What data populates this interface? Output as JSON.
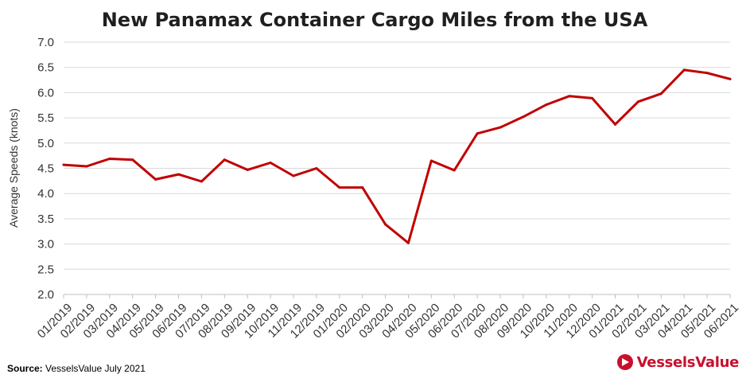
{
  "chart_data": {
    "type": "line",
    "title": "New Panamax Container Cargo Miles from the USA",
    "ylabel": "Average Speeds (knots)",
    "xlabel": "",
    "ylim": [
      2.0,
      7.0
    ],
    "yticks": [
      "2.0",
      "2.5",
      "3.0",
      "3.5",
      "4.0",
      "4.5",
      "5.0",
      "5.5",
      "6.0",
      "6.5",
      "7.0"
    ],
    "categories": [
      "01/2019",
      "02/2019",
      "03/2019",
      "04/2019",
      "05/2019",
      "06/2019",
      "07/2019",
      "08/2019",
      "09/2019",
      "10/2019",
      "11/2019",
      "12/2019",
      "01/2020",
      "02/2020",
      "03/2020",
      "04/2020",
      "05/2020",
      "06/2020",
      "07/2020",
      "08/2020",
      "09/2020",
      "10/2020",
      "11/2020",
      "12/2020",
      "01/2021",
      "02/2021",
      "03/2021",
      "04/2021",
      "05/2021",
      "06/2021"
    ],
    "series": [
      {
        "color": "#c00000",
        "values": [
          4.57,
          4.54,
          4.69,
          4.67,
          4.28,
          4.38,
          4.24,
          4.67,
          4.47,
          4.61,
          4.35,
          4.5,
          4.12,
          4.12,
          3.39,
          3.02,
          4.65,
          4.46,
          5.19,
          5.31,
          5.52,
          5.76,
          5.93,
          5.89,
          5.37,
          5.82,
          5.98,
          6.45,
          6.39,
          6.27
        ]
      }
    ],
    "grid": true,
    "legend": "none"
  },
  "footer": {
    "source_label": "Source:",
    "source_text": " VesselsValue July 2021",
    "brand_name": "VesselsValue",
    "brand_color": "#c8102e",
    "brand_icon": "triangle-logo-icon"
  }
}
